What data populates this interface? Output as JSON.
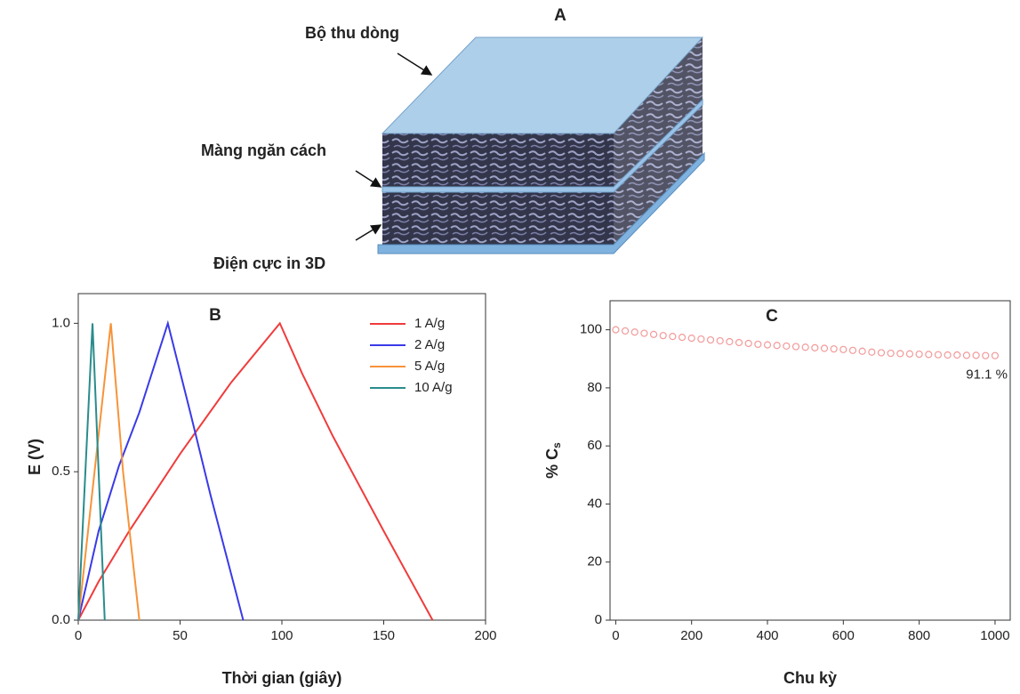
{
  "diagram": {
    "label": "A",
    "top_label": "Bộ thu dòng",
    "middle_label": "Màng ngăn cách",
    "bottom_label": "Điện cực in 3D"
  },
  "chart_data": [
    {
      "type": "line",
      "label": "B",
      "xlabel": "Thời gian (giây)",
      "ylabel": "E (V)",
      "xlim": [
        0,
        200
      ],
      "ylim": [
        0,
        1.1
      ],
      "xticks": [
        0,
        50,
        100,
        150,
        200
      ],
      "yticks": [
        {
          "value": 0,
          "label": "0.0"
        },
        {
          "value": 0.5,
          "label": "0.5"
        },
        {
          "value": 1,
          "label": "1.0"
        }
      ],
      "legend": "upper right",
      "series": [
        {
          "name": "1 A/g",
          "color": "#f03c3c",
          "x": [
            0,
            10,
            25,
            50,
            75,
            99,
            110,
            125,
            150,
            174
          ],
          "values": [
            0,
            0.13,
            0.3,
            0.56,
            0.8,
            1.0,
            0.83,
            0.62,
            0.3,
            0
          ]
        },
        {
          "name": "2 A/g",
          "color": "#3a3ae8",
          "x": [
            0,
            10,
            20,
            30,
            44,
            55,
            65,
            81
          ],
          "values": [
            0,
            0.3,
            0.52,
            0.7,
            1.0,
            0.7,
            0.42,
            0
          ]
        },
        {
          "name": "5 A/g",
          "color": "#f7933a",
          "x": [
            0,
            8,
            16,
            22,
            30
          ],
          "values": [
            0,
            0.5,
            1.0,
            0.5,
            0
          ]
        },
        {
          "name": "10 A/g",
          "color": "#2a8c8c",
          "x": [
            0,
            7,
            10,
            13
          ],
          "values": [
            0,
            1.0,
            0.5,
            0
          ]
        }
      ]
    },
    {
      "type": "scatter",
      "label": "C",
      "xlabel": "Chu kỳ",
      "ylabel": "% C",
      "ylabel_subscript": "s",
      "xlim": [
        -15,
        1040
      ],
      "ylim": [
        0,
        110
      ],
      "xticks": [
        0,
        200,
        400,
        600,
        800,
        1000
      ],
      "yticks": [
        0,
        20,
        40,
        60,
        80,
        100
      ],
      "annotation": "91.1 %",
      "series": [
        {
          "color": "#f29a9a",
          "x": [
            0,
            25,
            50,
            75,
            100,
            125,
            150,
            175,
            200,
            225,
            250,
            275,
            300,
            325,
            350,
            375,
            400,
            425,
            450,
            475,
            500,
            525,
            550,
            575,
            600,
            625,
            650,
            675,
            700,
            725,
            750,
            775,
            800,
            825,
            850,
            875,
            900,
            925,
            950,
            975,
            1000
          ],
          "values": [
            100,
            99.6,
            99.2,
            98.8,
            98.4,
            98.0,
            97.7,
            97.4,
            97.1,
            96.8,
            96.5,
            96.2,
            95.9,
            95.6,
            95.3,
            95.0,
            94.8,
            94.6,
            94.4,
            94.2,
            94.0,
            93.8,
            93.6,
            93.4,
            93.2,
            92.9,
            92.6,
            92.3,
            92.1,
            91.9,
            91.8,
            91.7,
            91.6,
            91.5,
            91.4,
            91.3,
            91.3,
            91.2,
            91.2,
            91.1,
            91.1
          ]
        }
      ]
    }
  ]
}
